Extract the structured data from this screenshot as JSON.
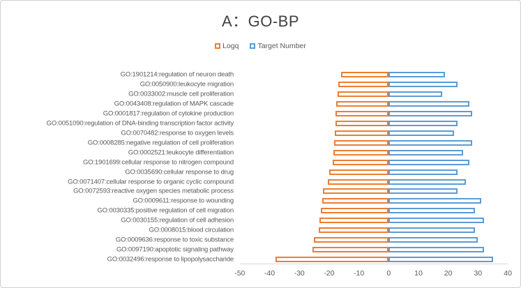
{
  "title": "A：GO-BP",
  "legend": {
    "items": [
      {
        "label": "Logq",
        "color": "#ED7D31"
      },
      {
        "label": "Target Number",
        "color": "#5B9BD5"
      }
    ]
  },
  "chart_data": {
    "type": "bar",
    "orientation": "horizontal-diverging",
    "title": "A：GO-BP",
    "categories": [
      "GO:1901214:regulation of neuron death",
      "GO:0050900:leukocyte migration",
      "GO:0033002:muscle cell proliferation",
      "GO:0043408:regulation of MAPK cascade",
      "GO:0001817:regulation of cytokine production",
      "GO:0051090:regulation of DNA-binding transcription factor activity",
      "GO:0070482:response to oxygen levels",
      "GO:0008285:negative regulation of cell proliferation",
      "GO:0002521:leukocyte differentiation",
      "GO:1901699:cellular response to nitrogen compound",
      "GO:0035690:cellular response to drug",
      "GO:0071407:cellular response to organic cyclic compound",
      "GO:0072593:reactive oxygen species metabolic process",
      "GO:0009611:response to wounding",
      "GO:0030335:positive regulation of cell migration",
      "GO:0030155:regulation of cell adhesion",
      "GO:0008015:blood circulation",
      "GO:0009636:response to toxic substance",
      "GO:0097190:apoptotic signaling pathway",
      "GO:0032496:response to lipopolysaccharide"
    ],
    "series": [
      {
        "name": "Logq",
        "color": "#ED7D31",
        "values": [
          -16.0,
          -16.9,
          -17.2,
          -17.6,
          -17.8,
          -17.9,
          -18.0,
          -18.3,
          -18.6,
          -18.8,
          -19.9,
          -20.4,
          -22.0,
          -22.4,
          -22.9,
          -23.2,
          -23.4,
          -25.1,
          -25.7,
          -38.0
        ]
      },
      {
        "name": "Target Number",
        "color": "#5B9BD5",
        "values": [
          19,
          23,
          18,
          27,
          28,
          23,
          22,
          28,
          25,
          27,
          23,
          26,
          23,
          31,
          29,
          32,
          29,
          30,
          32,
          35
        ]
      }
    ],
    "xlabel": "",
    "ylabel": "",
    "xlim": [
      -50,
      40
    ],
    "x_ticks": [
      -50,
      -40,
      -30,
      -20,
      -10,
      0,
      10,
      20,
      30,
      40
    ],
    "grid": false,
    "legend_position": "top-center",
    "bar_style": "outlined-white-fill",
    "axis_line_color": "#D9D9D9",
    "text_color": "#595959",
    "title_color": "#404040"
  }
}
